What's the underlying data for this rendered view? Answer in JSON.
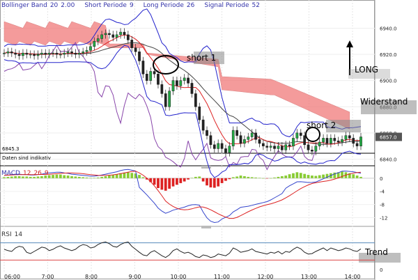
{
  "header": {
    "bollinger_label": "Bollinger Band",
    "bollinger_params": [
      "20",
      "2.00"
    ],
    "short_label": "Short Periode",
    "short_value": "9",
    "long_label": "Long Periode",
    "long_value": "26",
    "signal_label": "Signal Periode",
    "signal_value": "52"
  },
  "price_note": "6845.3",
  "disclaimer": "Daten sind indikativ",
  "macd_label": "MACD",
  "macd_params": [
    "12",
    "26",
    "9"
  ],
  "rsi_label": "RSI",
  "rsi_param": "14",
  "annotations": {
    "short1": "short 1",
    "short2": "short 2",
    "long": "LONG",
    "widerstand": "Widerstand",
    "trend": "Trend"
  },
  "colors": {
    "accent_blue": "#3333aa",
    "band_blue": "#2222cc",
    "cloud_red": "#f07070",
    "macd_green": "#88cc33",
    "macd_red": "#dd2222",
    "rsi_band": "#5588bb",
    "last_price_bg": "#555555"
  },
  "chart_data": [
    {
      "type": "candlestick",
      "panel": "price",
      "x_ticks": [
        "06:00",
        "7:00",
        "8:00",
        "9:00",
        "10:00",
        "11:00",
        "12:00",
        "13:00",
        "14:00"
      ],
      "y_ticks": [
        6840.0,
        6860.0,
        6880.0,
        6900.0,
        6920.0,
        6940.0
      ],
      "ylim": [
        6836,
        6953
      ],
      "last_price": "6857.0",
      "series": [
        {
          "name": "Bollinger Band",
          "close": [
            6921,
            6922,
            6921,
            6920,
            6919,
            6921,
            6920,
            6920,
            6919,
            6920,
            6921,
            6920,
            6921,
            6921,
            6920,
            6920,
            6921,
            6922,
            6921,
            6920,
            6921,
            6922,
            6923,
            6926,
            6930,
            6932,
            6935,
            6936,
            6935,
            6933,
            6935,
            6937,
            6935,
            6931,
            6925,
            6922,
            6915,
            6905,
            6900,
            6907,
            6905,
            6897,
            6890,
            6880,
            6892,
            6900,
            6896,
            6900,
            6902,
            6898,
            6890,
            6880,
            6870,
            6862,
            6858,
            6851,
            6848,
            6852,
            6848,
            6845,
            6850,
            6862,
            6858,
            6852,
            6855,
            6857,
            6860,
            6855,
            6852,
            6850,
            6849,
            6850,
            6848,
            6850,
            6847,
            6851,
            6850,
            6856,
            6860,
            6858,
            6851,
            6847,
            6846,
            6850,
            6853,
            6856,
            6852,
            6856,
            6854,
            6853,
            6855,
            6858,
            6856,
            6852,
            6850,
            6857
          ]
        }
      ]
    },
    {
      "type": "bar+line",
      "panel": "MACD",
      "name": "MACD 12 26 9",
      "y_ticks": [
        0,
        -4,
        -8,
        -12
      ],
      "ylim": [
        -14,
        2.5
      ],
      "histogram": [
        0.3,
        0.4,
        0.5,
        0.6,
        0.6,
        0.5,
        0.5,
        0.4,
        0.4,
        0.5,
        0.6,
        0.8,
        0.9,
        1.0,
        1.1,
        1.1,
        0.9,
        0.8,
        0.6,
        0.5,
        0.4,
        0.3,
        0.2,
        0.1,
        0.1,
        0.2,
        0.4,
        0.6,
        0.8,
        1.0,
        1.2,
        1.5,
        1.7,
        1.8,
        1.6,
        1.4,
        1.0,
        0.3,
        -0.4,
        -1.2,
        -2.0,
        -3.0,
        -3.5,
        -3.8,
        -3.2,
        -2.5,
        -2.0,
        -1.5,
        -1.0,
        -0.4,
        0.1,
        0.4,
        0.5,
        -1.0,
        -2.2,
        -2.8,
        -2.9,
        -2.5,
        -1.5,
        -0.8,
        -0.3,
        0.3,
        0.5,
        0.8,
        0.6,
        0.4,
        0.3,
        0.2,
        0.1,
        0.0,
        -0.1,
        0.0,
        0.2,
        0.4,
        0.6,
        0.8,
        1.2,
        1.5,
        1.8,
        1.6,
        1.3,
        1.0,
        0.8,
        0.7,
        0.9,
        1.1,
        1.3,
        1.5,
        1.7,
        1.8,
        2.0,
        1.8,
        1.5,
        1.2,
        0.8,
        0.4
      ]
    },
    {
      "type": "line",
      "panel": "RSI",
      "name": "RSI 14",
      "ylim": [
        0,
        100
      ],
      "y_ticks": [
        0
      ],
      "levels": [
        70,
        30
      ],
      "values": [
        55,
        52,
        50,
        58,
        62,
        60,
        48,
        45,
        50,
        55,
        60,
        58,
        52,
        55,
        60,
        63,
        58,
        55,
        52,
        55,
        62,
        66,
        64,
        58,
        60,
        66,
        70,
        72,
        68,
        62,
        60,
        66,
        70,
        72,
        62,
        55,
        48,
        42,
        40,
        48,
        52,
        46,
        40,
        36,
        42,
        52,
        56,
        50,
        46,
        48,
        44,
        38,
        36,
        42,
        40,
        36,
        38,
        44,
        42,
        40,
        46,
        58,
        54,
        48,
        50,
        52,
        56,
        50,
        48,
        46,
        44,
        48,
        46,
        50,
        44,
        50,
        48,
        55,
        60,
        56,
        48,
        44,
        45,
        50,
        54,
        58,
        52,
        58,
        55,
        52,
        54,
        58,
        56,
        52,
        50,
        56
      ]
    }
  ]
}
